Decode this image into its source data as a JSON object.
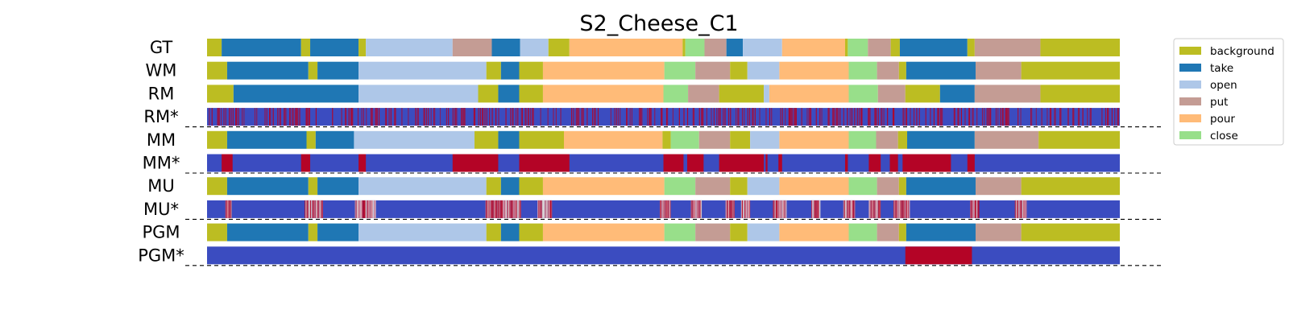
{
  "chart_data": {
    "type": "segmentation",
    "title": "S2_Cheese_C1",
    "x_range": [
      0,
      1000
    ],
    "colors": {
      "background": "#bcbd22",
      "take": "#1f77b4",
      "open": "#aec7e8",
      "put": "#c49c94",
      "pour": "#ffbb78",
      "close": "#98df8a"
    },
    "confidence_colors": {
      "high": "#3b4cc0",
      "low": "#b40426"
    },
    "legend": {
      "placement": "right",
      "entries": [
        "background",
        "take",
        "open",
        "put",
        "pour",
        "close"
      ]
    },
    "rows": [
      {
        "label": "GT",
        "kind": "segments",
        "segments": [
          [
            0,
            16,
            "background"
          ],
          [
            16,
            103,
            "take"
          ],
          [
            103,
            113,
            "background"
          ],
          [
            113,
            166,
            "take"
          ],
          [
            166,
            174,
            "background"
          ],
          [
            174,
            269,
            "open"
          ],
          [
            269,
            312,
            "put"
          ],
          [
            312,
            343,
            "take"
          ],
          [
            343,
            374,
            "open"
          ],
          [
            374,
            397,
            "background"
          ],
          [
            397,
            521,
            "pour"
          ],
          [
            521,
            524,
            "background"
          ],
          [
            524,
            545,
            "close"
          ],
          [
            545,
            569,
            "put"
          ],
          [
            569,
            587,
            "take"
          ],
          [
            587,
            630,
            "open"
          ],
          [
            630,
            699,
            "pour"
          ],
          [
            699,
            702,
            "background"
          ],
          [
            702,
            724,
            "close"
          ],
          [
            724,
            749,
            "put"
          ],
          [
            749,
            759,
            "background"
          ],
          [
            759,
            833,
            "take"
          ],
          [
            833,
            841,
            "background"
          ],
          [
            841,
            913,
            "put"
          ],
          [
            913,
            1000,
            "background"
          ]
        ]
      },
      {
        "label": "WM",
        "kind": "segments",
        "segments": [
          [
            0,
            22,
            "background"
          ],
          [
            22,
            111,
            "take"
          ],
          [
            111,
            121,
            "background"
          ],
          [
            121,
            166,
            "take"
          ],
          [
            166,
            306,
            "open"
          ],
          [
            306,
            322,
            "background"
          ],
          [
            322,
            342,
            "take"
          ],
          [
            342,
            368,
            "background"
          ],
          [
            368,
            501,
            "pour"
          ],
          [
            501,
            535,
            "close"
          ],
          [
            535,
            573,
            "put"
          ],
          [
            573,
            592,
            "background"
          ],
          [
            592,
            627,
            "open"
          ],
          [
            627,
            703,
            "pour"
          ],
          [
            703,
            734,
            "close"
          ],
          [
            734,
            758,
            "put"
          ],
          [
            758,
            766,
            "background"
          ],
          [
            766,
            842,
            "take"
          ],
          [
            842,
            892,
            "put"
          ],
          [
            892,
            1000,
            "background"
          ]
        ]
      },
      {
        "label": "RM",
        "kind": "segments",
        "segments": [
          [
            0,
            29,
            "background"
          ],
          [
            29,
            166,
            "take"
          ],
          [
            166,
            297,
            "open"
          ],
          [
            297,
            319,
            "background"
          ],
          [
            319,
            342,
            "take"
          ],
          [
            342,
            368,
            "background"
          ],
          [
            368,
            500,
            "pour"
          ],
          [
            500,
            527,
            "close"
          ],
          [
            527,
            561,
            "put"
          ],
          [
            561,
            610,
            "background"
          ],
          [
            610,
            616,
            "open"
          ],
          [
            616,
            703,
            "pour"
          ],
          [
            703,
            735,
            "close"
          ],
          [
            735,
            765,
            "put"
          ],
          [
            765,
            803,
            "background"
          ],
          [
            803,
            841,
            "take"
          ],
          [
            841,
            913,
            "put"
          ],
          [
            913,
            1000,
            "background"
          ]
        ]
      },
      {
        "label": "RM*",
        "kind": "confidence",
        "pattern": "dense",
        "low_regions": []
      },
      {
        "label": "MM",
        "kind": "segments",
        "segments": [
          [
            0,
            22,
            "background"
          ],
          [
            22,
            109,
            "take"
          ],
          [
            109,
            119,
            "background"
          ],
          [
            119,
            161,
            "take"
          ],
          [
            161,
            293,
            "open"
          ],
          [
            293,
            319,
            "background"
          ],
          [
            319,
            342,
            "take"
          ],
          [
            342,
            391,
            "background"
          ],
          [
            391,
            499,
            "pour"
          ],
          [
            499,
            508,
            "background"
          ],
          [
            508,
            539,
            "close"
          ],
          [
            539,
            573,
            "put"
          ],
          [
            573,
            595,
            "background"
          ],
          [
            595,
            627,
            "open"
          ],
          [
            627,
            703,
            "pour"
          ],
          [
            703,
            733,
            "close"
          ],
          [
            733,
            757,
            "put"
          ],
          [
            757,
            767,
            "background"
          ],
          [
            767,
            841,
            "take"
          ],
          [
            841,
            911,
            "put"
          ],
          [
            911,
            1000,
            "background"
          ]
        ]
      },
      {
        "label": "MM*",
        "kind": "confidence",
        "pattern": "blocks",
        "low_regions": [
          [
            16,
            28
          ],
          [
            103,
            113
          ],
          [
            166,
            174
          ],
          [
            269,
            319
          ],
          [
            342,
            397
          ],
          [
            500,
            522
          ],
          [
            526,
            544
          ],
          [
            561,
            610
          ],
          [
            612,
            614
          ],
          [
            626,
            630
          ],
          [
            699,
            702
          ],
          [
            725,
            738
          ],
          [
            748,
            757
          ],
          [
            750,
            752
          ],
          [
            762,
            815
          ],
          [
            833,
            841
          ]
        ]
      },
      {
        "label": "MU",
        "kind": "segments",
        "segments": [
          [
            0,
            22,
            "background"
          ],
          [
            22,
            111,
            "take"
          ],
          [
            111,
            121,
            "background"
          ],
          [
            121,
            166,
            "take"
          ],
          [
            166,
            306,
            "open"
          ],
          [
            306,
            322,
            "background"
          ],
          [
            322,
            342,
            "take"
          ],
          [
            342,
            368,
            "background"
          ],
          [
            368,
            501,
            "pour"
          ],
          [
            501,
            535,
            "close"
          ],
          [
            535,
            573,
            "put"
          ],
          [
            573,
            592,
            "background"
          ],
          [
            592,
            627,
            "open"
          ],
          [
            627,
            703,
            "pour"
          ],
          [
            703,
            734,
            "close"
          ],
          [
            734,
            758,
            "put"
          ],
          [
            758,
            766,
            "background"
          ],
          [
            766,
            842,
            "take"
          ],
          [
            842,
            892,
            "put"
          ],
          [
            892,
            1000,
            "background"
          ]
        ]
      },
      {
        "label": "MU*",
        "kind": "confidence",
        "pattern": "transitions",
        "low_regions": [
          [
            20,
            27
          ],
          [
            107,
            127
          ],
          [
            162,
            185
          ],
          [
            305,
            344
          ],
          [
            362,
            378
          ],
          [
            496,
            508
          ],
          [
            530,
            542
          ],
          [
            568,
            578
          ],
          [
            585,
            595
          ],
          [
            620,
            635
          ],
          [
            662,
            672
          ],
          [
            697,
            710
          ],
          [
            725,
            738
          ],
          [
            752,
            770
          ],
          [
            836,
            846
          ],
          [
            885,
            898
          ]
        ]
      },
      {
        "label": "PGM",
        "kind": "segments",
        "segments": [
          [
            0,
            22,
            "background"
          ],
          [
            22,
            111,
            "take"
          ],
          [
            111,
            121,
            "background"
          ],
          [
            121,
            166,
            "take"
          ],
          [
            166,
            306,
            "open"
          ],
          [
            306,
            322,
            "background"
          ],
          [
            322,
            342,
            "take"
          ],
          [
            342,
            368,
            "background"
          ],
          [
            368,
            501,
            "pour"
          ],
          [
            501,
            535,
            "close"
          ],
          [
            535,
            573,
            "put"
          ],
          [
            573,
            592,
            "background"
          ],
          [
            592,
            627,
            "open"
          ],
          [
            627,
            703,
            "pour"
          ],
          [
            703,
            734,
            "close"
          ],
          [
            734,
            758,
            "put"
          ],
          [
            758,
            766,
            "background"
          ],
          [
            766,
            842,
            "take"
          ],
          [
            842,
            892,
            "put"
          ],
          [
            892,
            1000,
            "background"
          ]
        ]
      },
      {
        "label": "PGM*",
        "kind": "confidence",
        "pattern": "blocks",
        "low_regions": [
          [
            765,
            838
          ]
        ]
      }
    ]
  }
}
